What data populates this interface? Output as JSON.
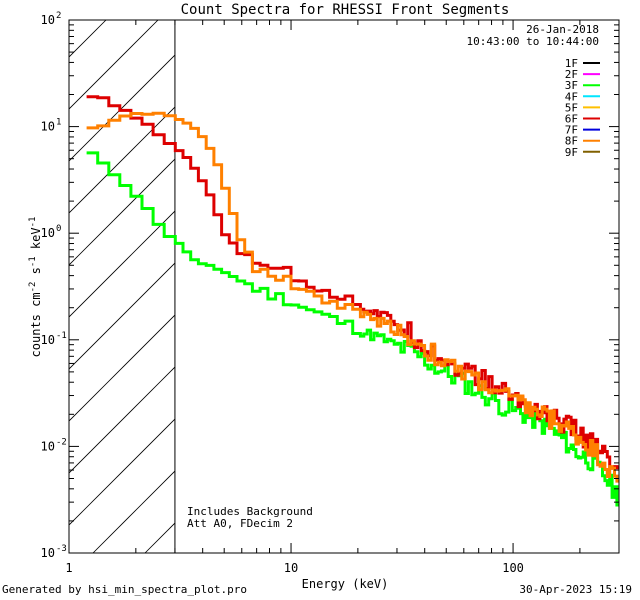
{
  "chart_data": {
    "type": "line",
    "title": "Count Spectra for RHESSI Front Segments",
    "xlabel": "Energy (keV)",
    "ylabel_base": "counts cm",
    "ylabel_exp1": "-2",
    "ylabel_mid1": " s",
    "ylabel_exp2": "-1",
    "ylabel_mid2": " keV",
    "ylabel_exp3": "-1",
    "xscale": "log",
    "yscale": "log",
    "xlim": [
      1,
      300
    ],
    "ylim": [
      0.001,
      100
    ],
    "x_ticks": [
      {
        "value": 1,
        "label": "1"
      },
      {
        "value": 10,
        "label": "10"
      },
      {
        "value": 100,
        "label": "100"
      }
    ],
    "y_ticks": [
      {
        "value": 0.001,
        "base": "10",
        "exp": "-3"
      },
      {
        "value": 0.01,
        "base": "10",
        "exp": "-2"
      },
      {
        "value": 0.1,
        "base": "10",
        "exp": "-1"
      },
      {
        "value": 1,
        "base": "10",
        "exp": "0"
      },
      {
        "value": 10,
        "base": "10",
        "exp": "1"
      },
      {
        "value": 100,
        "base": "10",
        "exp": "2"
      }
    ],
    "hatch_region_keV": [
      1,
      3
    ],
    "date": "26-Jan-2018",
    "time_range": "10:43:00 to 10:44:00",
    "legend_position": "top-right",
    "legend": [
      {
        "name": "1F",
        "color": "#000000"
      },
      {
        "name": "2F",
        "color": "#ff00ff"
      },
      {
        "name": "3F",
        "color": "#00ff00"
      },
      {
        "name": "4F",
        "color": "#00e5ff"
      },
      {
        "name": "5F",
        "color": "#ffc000"
      },
      {
        "name": "6F",
        "color": "#dd0000"
      },
      {
        "name": "7F",
        "color": "#0000dd"
      },
      {
        "name": "8F",
        "color": "#ff8000"
      },
      {
        "name": "9F",
        "color": "#806000"
      }
    ],
    "annotations": [
      "Includes Background",
      "Att A0, FDecim 2"
    ],
    "series": [
      {
        "name": "3F",
        "color": "#00ff00",
        "x": [
          1.2,
          1.45,
          1.7,
          2.0,
          2.3,
          2.6,
          2.9,
          3.3,
          3.8,
          4.4,
          5.1,
          5.9,
          6.8,
          7.9,
          9.1,
          10.5,
          12.2,
          14.1,
          16.3,
          18.8,
          21.8,
          25.2,
          29.1,
          33.6,
          38.9,
          45.0,
          52.0,
          60.1,
          69.5,
          80.3,
          92.8,
          107.3,
          124.0,
          143.3,
          165.7,
          191.5,
          221.3,
          255.8,
          295.7
        ],
        "y": [
          6.3,
          4.3,
          3.2,
          2.3,
          1.6,
          1.15,
          0.9,
          0.72,
          0.52,
          0.48,
          0.43,
          0.36,
          0.31,
          0.27,
          0.25,
          0.22,
          0.19,
          0.17,
          0.15,
          0.135,
          0.115,
          0.105,
          0.09,
          0.08,
          0.068,
          0.055,
          0.047,
          0.04,
          0.033,
          0.028,
          0.023,
          0.021,
          0.018,
          0.015,
          0.012,
          0.009,
          0.0075,
          0.0055,
          0.0035
        ]
      },
      {
        "name": "6F",
        "color": "#dd0000",
        "x": [
          1.2,
          1.45,
          1.7,
          2.0,
          2.3,
          2.6,
          2.9,
          3.3,
          3.8,
          4.4,
          5.1,
          5.9,
          6.8,
          7.9,
          9.1,
          10.5,
          12.2,
          14.1,
          16.3,
          18.8,
          21.8,
          25.2,
          29.1,
          33.6,
          38.9,
          45.0,
          52.0,
          60.1,
          69.5,
          80.3,
          92.8,
          107.3,
          124.0,
          143.3,
          165.7,
          191.5,
          221.3,
          255.8,
          295.7
        ],
        "y": [
          19.5,
          18.0,
          14.5,
          12.5,
          10.0,
          8.0,
          6.5,
          5.5,
          3.8,
          2.1,
          0.95,
          0.65,
          0.58,
          0.52,
          0.46,
          0.38,
          0.34,
          0.3,
          0.26,
          0.23,
          0.2,
          0.17,
          0.15,
          0.12,
          0.095,
          0.075,
          0.06,
          0.052,
          0.045,
          0.038,
          0.032,
          0.027,
          0.023,
          0.02,
          0.017,
          0.014,
          0.011,
          0.0085,
          0.0055
        ]
      },
      {
        "name": "8F",
        "color": "#ff8000",
        "x": [
          1.2,
          1.45,
          1.7,
          2.0,
          2.3,
          2.6,
          2.9,
          3.3,
          3.8,
          4.4,
          5.1,
          5.9,
          6.8,
          7.9,
          9.1,
          10.5,
          12.2,
          14.1,
          16.3,
          18.8,
          21.8,
          25.2,
          29.1,
          33.6,
          38.9,
          45.0,
          52.0,
          60.1,
          69.5,
          80.3,
          92.8,
          107.3,
          124.0,
          143.3,
          165.7,
          191.5,
          221.3,
          255.8,
          295.7
        ],
        "y": [
          9.5,
          10.5,
          12.0,
          13.0,
          13.5,
          13.0,
          12.5,
          11.0,
          9.0,
          6.0,
          2.6,
          0.9,
          0.5,
          0.43,
          0.38,
          0.33,
          0.27,
          0.24,
          0.22,
          0.19,
          0.165,
          0.15,
          0.13,
          0.105,
          0.09,
          0.07,
          0.055,
          0.048,
          0.042,
          0.035,
          0.03,
          0.025,
          0.022,
          0.019,
          0.016,
          0.013,
          0.01,
          0.0075,
          0.0045
        ]
      }
    ]
  },
  "footer": {
    "left": "Generated by hsi_min_spectra_plot.pro",
    "right": "30-Apr-2023 15:19"
  }
}
